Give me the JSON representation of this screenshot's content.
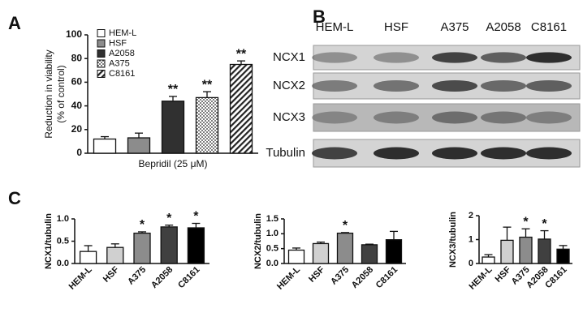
{
  "panel_labels": [
    "A",
    "B",
    "C"
  ],
  "blot": {
    "lanes": [
      "HEM-L",
      "HSF",
      "A375",
      "A2058",
      "C8161"
    ],
    "rows": [
      "NCX1",
      "NCX2",
      "NCX3",
      "Tubulin"
    ]
  },
  "chart_data": [
    {
      "type": "bar",
      "xlabel": "Bepridil (25 μM)",
      "ylabel": [
        "Reduction in viability",
        "(% of control)"
      ],
      "categories": [
        "HEM-L",
        "HSF",
        "A2058",
        "A375",
        "C8161"
      ],
      "values": [
        12,
        13,
        44,
        47,
        75
      ],
      "errors": [
        2,
        4,
        4,
        5,
        3
      ],
      "annotations": [
        null,
        null,
        "**",
        "**",
        "**"
      ],
      "colors": [
        "#ffffff",
        "#8c8c8c",
        "#303030",
        "#ffffff",
        "#ffffff"
      ],
      "patterns": [
        "none",
        "none",
        "none",
        "dots",
        "stripes"
      ],
      "legend": "upper left",
      "ylim": [
        0,
        100
      ],
      "yticks": [
        0,
        20,
        40,
        60,
        80,
        100
      ]
    },
    {
      "type": "bar",
      "ylabel": [
        "NCX1/tubulin"
      ],
      "categories": [
        "HEM-L",
        "HSF",
        "A375",
        "A2058",
        "C8161"
      ],
      "values": [
        0.27,
        0.36,
        0.68,
        0.82,
        0.8
      ],
      "errors": [
        0.13,
        0.08,
        0.03,
        0.04,
        0.1
      ],
      "annotations": [
        null,
        null,
        "*",
        "*",
        "*"
      ],
      "colors": [
        "#ffffff",
        "#d0d0d0",
        "#8c8c8c",
        "#404040",
        "#000000"
      ],
      "ylim": [
        0,
        1.0
      ],
      "yticks": [
        {
          "value": 0,
          "label": "0.0"
        },
        {
          "value": 0.5,
          "label": "0.5"
        },
        {
          "value": 1.0,
          "label": "1.0"
        }
      ]
    },
    {
      "type": "bar",
      "ylabel": [
        "NCX2/tubulin"
      ],
      "categories": [
        "HEM-L",
        "HSF",
        "A375",
        "A2058",
        "C8161"
      ],
      "values": [
        0.45,
        0.67,
        1.02,
        0.63,
        0.8
      ],
      "errors": [
        0.07,
        0.05,
        0.02,
        0.02,
        0.28
      ],
      "annotations": [
        null,
        null,
        "*",
        null,
        null
      ],
      "colors": [
        "#ffffff",
        "#d0d0d0",
        "#8c8c8c",
        "#404040",
        "#000000"
      ],
      "ylim": [
        0,
        1.5
      ],
      "yticks": [
        {
          "value": 0,
          "label": "0.0"
        },
        {
          "value": 0.5,
          "label": "0.5"
        },
        {
          "value": 1.0,
          "label": "1.0"
        },
        {
          "value": 1.5,
          "label": "1.5"
        }
      ]
    },
    {
      "type": "bar",
      "ylabel": [
        "NCX3/tubulin"
      ],
      "categories": [
        "HEM-L",
        "HSF",
        "A375",
        "A2058",
        "C8161"
      ],
      "values": [
        0.27,
        0.97,
        1.1,
        1.02,
        0.6
      ],
      "errors": [
        0.1,
        0.55,
        0.35,
        0.35,
        0.15
      ],
      "annotations": [
        null,
        null,
        "*",
        "*",
        null
      ],
      "colors": [
        "#ffffff",
        "#d0d0d0",
        "#8c8c8c",
        "#404040",
        "#000000"
      ],
      "ylim": [
        0,
        2
      ],
      "yticks": [
        0,
        1,
        2
      ]
    }
  ]
}
